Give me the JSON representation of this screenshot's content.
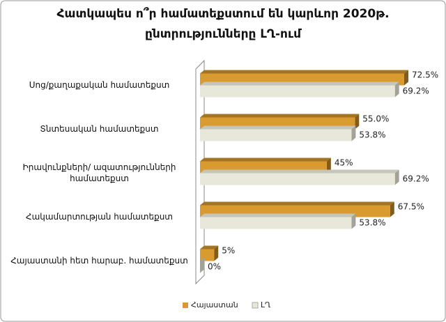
{
  "chart_data": {
    "type": "bar3d_horizontal",
    "title": "Հատկապես ո՞ր համատեքստում են կարևոր 2020թ. ընտրությունները ԼՂ-ում",
    "categories": [
      "Սոց/քաղաքական համատեքստ",
      "Տնտեսական համատեքստ",
      "Իրավունքների/ ազատությունների համատեքստ",
      "Հակամարտության համատեքստ",
      "Հայաստանի հետ հարաբ. համատեքստ"
    ],
    "series": [
      {
        "name": "Հայաստան",
        "color": "#d99a30",
        "values": [
          72.5,
          55,
          45,
          67.5,
          5
        ],
        "value_labels": [
          "72.5%",
          "55.0%",
          "45%",
          "67.5%",
          "5%"
        ]
      },
      {
        "name": "ԼՂ",
        "color": "#e8e8da",
        "values": [
          69.2,
          53.8,
          69.2,
          53.8,
          0
        ],
        "value_labels": [
          "69.2%",
          "53.8%",
          "69.2%",
          "53.8%",
          "0%"
        ]
      }
    ],
    "legend": "bottom"
  }
}
